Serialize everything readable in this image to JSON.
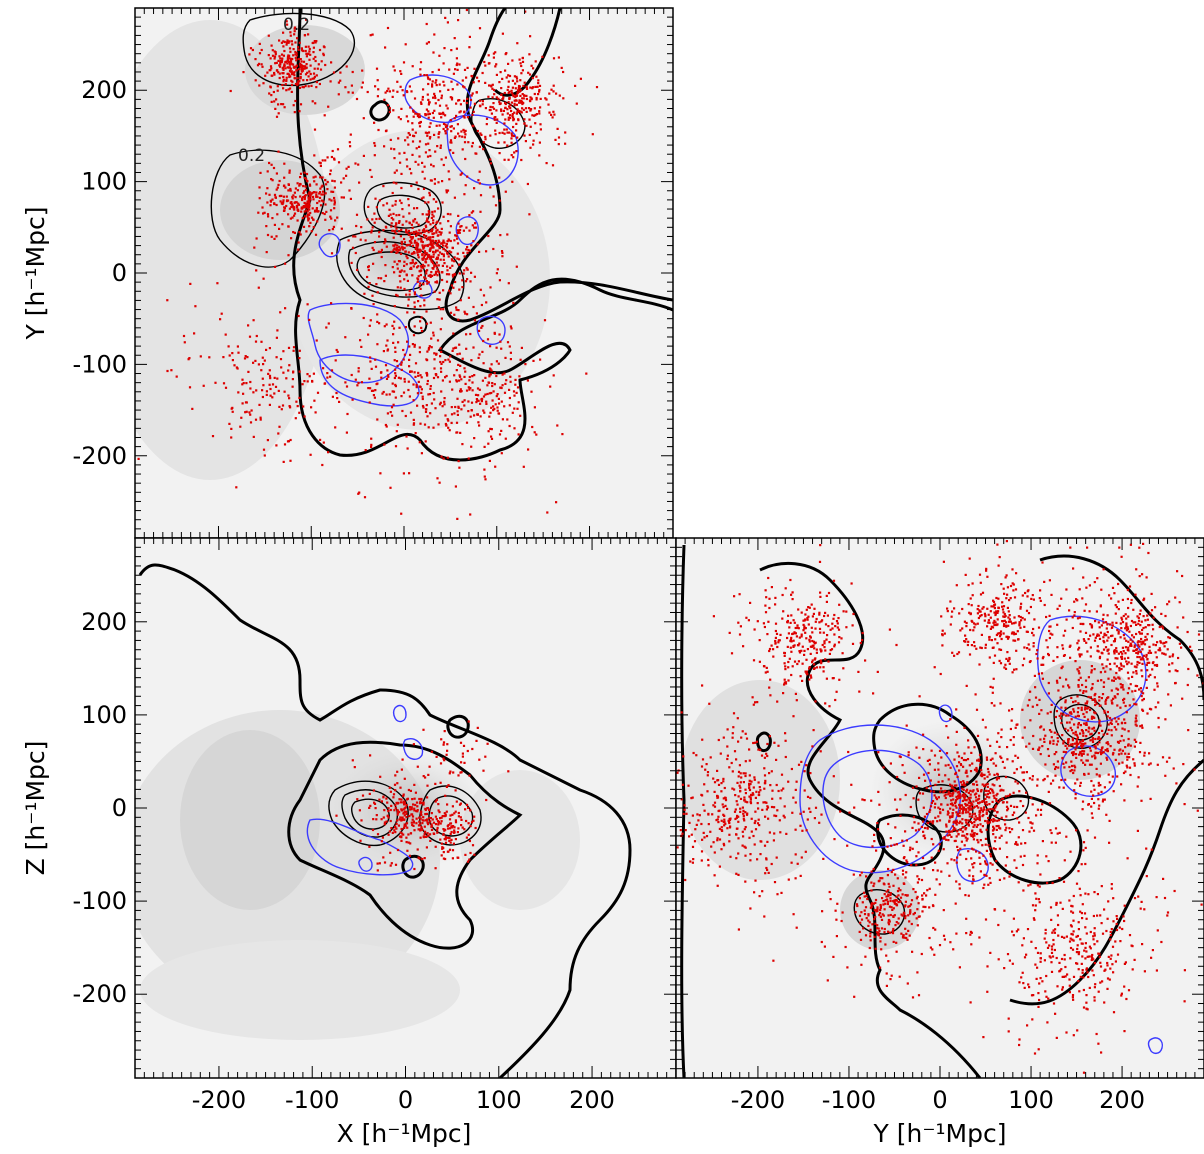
{
  "chart_data": [
    {
      "type": "scatter",
      "panel": "X-Y",
      "xlabel": "",
      "ylabel": "Y [h⁻¹Mpc]",
      "xlim": [
        -290,
        290
      ],
      "ylim": [
        -290,
        290
      ],
      "xticks": [],
      "yticks": [
        -200,
        -100,
        0,
        100,
        200
      ],
      "contour_labels": [
        "0.2",
        "0.2"
      ],
      "colors": {
        "points": "#dd0000",
        "density_contours": "#000000",
        "secondary_contours": "#3b3bff",
        "background": "#e8e8e8"
      },
      "clusters": [
        {
          "x": 20,
          "y": 30,
          "spread": 40,
          "weight": 1.0
        },
        {
          "x": -120,
          "y": 225,
          "spread": 25,
          "weight": 0.5
        },
        {
          "x": -110,
          "y": 80,
          "spread": 30,
          "weight": 0.5
        },
        {
          "x": 120,
          "y": 190,
          "spread": 35,
          "weight": 0.5
        },
        {
          "x": 30,
          "y": 170,
          "spread": 60,
          "weight": 0.6
        },
        {
          "x": 0,
          "y": -110,
          "spread": 70,
          "weight": 0.5
        },
        {
          "x": 80,
          "y": -130,
          "spread": 50,
          "weight": 0.4
        },
        {
          "x": -150,
          "y": -120,
          "spread": 60,
          "weight": 0.3
        }
      ]
    },
    {
      "type": "scatter",
      "panel": "X-Z",
      "xlabel": "X [h⁻¹Mpc]",
      "ylabel": "Z [h⁻¹Mpc]",
      "xlim": [
        -290,
        290
      ],
      "ylim": [
        -290,
        290
      ],
      "xticks": [
        -200,
        -100,
        0,
        100,
        200
      ],
      "yticks": [
        -200,
        -100,
        0,
        100,
        200
      ],
      "colors": {
        "points": "#dd0000",
        "density_contours": "#000000",
        "secondary_contours": "#3b3bff",
        "background": "#e8e8e8"
      },
      "clusters": [
        {
          "x": 0,
          "y": -10,
          "spread": 30,
          "weight": 0.6
        },
        {
          "x": 40,
          "y": -20,
          "spread": 20,
          "weight": 0.3
        },
        {
          "x": 50,
          "y": 50,
          "spread": 40,
          "weight": 0.1
        }
      ]
    },
    {
      "type": "scatter",
      "panel": "Y-Z",
      "xlabel": "Y [h⁻¹Mpc]",
      "ylabel": "",
      "xlim": [
        -290,
        290
      ],
      "ylim": [
        -290,
        290
      ],
      "xticks": [
        -200,
        -100,
        0,
        100,
        200
      ],
      "yticks": [],
      "colors": {
        "points": "#dd0000",
        "density_contours": "#000000",
        "secondary_contours": "#3b3bff",
        "background": "#e8e8e8"
      },
      "clusters": [
        {
          "x": 30,
          "y": 0,
          "spread": 50,
          "weight": 1.0
        },
        {
          "x": 160,
          "y": 80,
          "spread": 60,
          "weight": 0.8
        },
        {
          "x": 200,
          "y": 180,
          "spread": 50,
          "weight": 0.6
        },
        {
          "x": -220,
          "y": 0,
          "spread": 60,
          "weight": 0.6
        },
        {
          "x": -150,
          "y": 180,
          "spread": 40,
          "weight": 0.4
        },
        {
          "x": -60,
          "y": -110,
          "spread": 40,
          "weight": 0.4
        },
        {
          "x": 150,
          "y": -150,
          "spread": 60,
          "weight": 0.5
        },
        {
          "x": 60,
          "y": 200,
          "spread": 40,
          "weight": 0.4
        }
      ]
    }
  ]
}
